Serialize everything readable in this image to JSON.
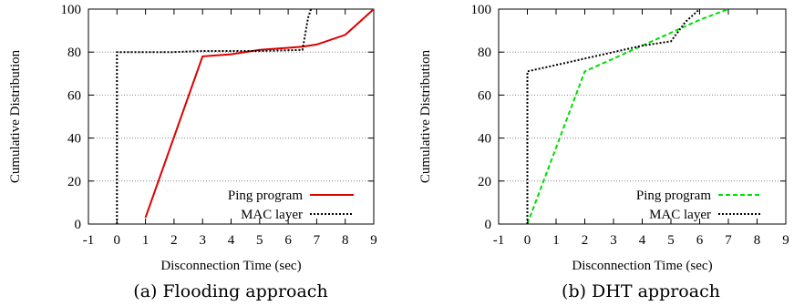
{
  "chart_data": [
    {
      "type": "line",
      "caption": "(a) Flooding approach",
      "xlabel": "Disconnection Time (sec)",
      "ylabel": "Cumulative Distribution",
      "xlim": [
        -1,
        9
      ],
      "ylim": [
        0,
        100
      ],
      "xticks": [
        -1,
        0,
        1,
        2,
        3,
        4,
        5,
        6,
        7,
        8,
        9
      ],
      "yticks": [
        0,
        20,
        40,
        60,
        80,
        100
      ],
      "grid": "horizontal",
      "legend_position": "bottom-right",
      "series": [
        {
          "name": "Ping program",
          "color": "#dd0000",
          "style": "solid",
          "points": [
            [
              1,
              3
            ],
            [
              3,
              78
            ],
            [
              3.5,
              78.5
            ],
            [
              4,
              79
            ],
            [
              5,
              81
            ],
            [
              6,
              82
            ],
            [
              6.5,
              82.5
            ],
            [
              7,
              83.5
            ],
            [
              8,
              88
            ],
            [
              9,
              100
            ]
          ]
        },
        {
          "name": "MAC layer",
          "color": "#000000",
          "style": "dotted",
          "points": [
            [
              0,
              0
            ],
            [
              0,
              80
            ],
            [
              1,
              80
            ],
            [
              2,
              80
            ],
            [
              3,
              80.5
            ],
            [
              4,
              80.5
            ],
            [
              5,
              80.5
            ],
            [
              6.5,
              81
            ],
            [
              6.7,
              96
            ],
            [
              6.8,
              100
            ]
          ]
        }
      ]
    },
    {
      "type": "line",
      "caption": "(b) DHT approach",
      "xlabel": "Disconnection Time (sec)",
      "ylabel": "Cumulative Distribution",
      "xlim": [
        -1,
        9
      ],
      "ylim": [
        0,
        100
      ],
      "xticks": [
        -1,
        0,
        1,
        2,
        3,
        4,
        5,
        6,
        7,
        8,
        9
      ],
      "yticks": [
        0,
        20,
        40,
        60,
        80,
        100
      ],
      "grid": "horizontal",
      "legend_position": "bottom-right",
      "series": [
        {
          "name": "Ping program",
          "color": "#00dd00",
          "style": "dashed",
          "points": [
            [
              0,
              0
            ],
            [
              2,
              71
            ],
            [
              3,
              77
            ],
            [
              4,
              83
            ],
            [
              5,
              89
            ],
            [
              6,
              95
            ],
            [
              7,
              100
            ]
          ]
        },
        {
          "name": "MAC layer",
          "color": "#000000",
          "style": "dotted",
          "points": [
            [
              0,
              0
            ],
            [
              0,
              71
            ],
            [
              1,
              74
            ],
            [
              2,
              77
            ],
            [
              3,
              80
            ],
            [
              4,
              83
            ],
            [
              5,
              85
            ],
            [
              5.5,
              94
            ],
            [
              6,
              100
            ]
          ]
        }
      ]
    }
  ]
}
